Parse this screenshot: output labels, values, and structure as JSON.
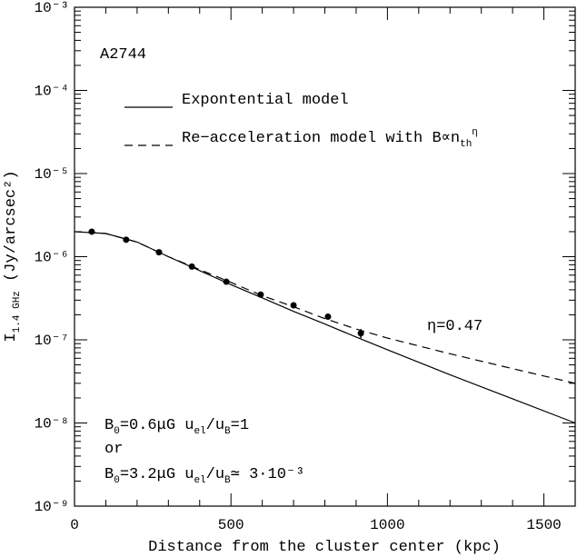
{
  "chart_data": {
    "type": "line",
    "xlabel": "Distance from the cluster center (kpc)",
    "ylabel": [
      {
        "text": "I"
      },
      {
        "text": "1.4 GHz",
        "pos": "sub"
      },
      {
        "text": " (Jy/arcsec²)"
      }
    ],
    "log_y": true,
    "xlim": [
      0,
      1600
    ],
    "xticks": [
      0,
      500,
      1000,
      1500
    ],
    "xminorticks": [
      100,
      200,
      300,
      400,
      600,
      700,
      800,
      900,
      1100,
      1200,
      1300,
      1400,
      1600
    ],
    "ylim": [
      1e-09,
      0.001
    ],
    "yticks": [
      {
        "value": 1e-09,
        "label": "10⁻⁹"
      },
      {
        "value": 1e-08,
        "label": "10⁻⁸"
      },
      {
        "value": 1e-07,
        "label": "10⁻⁷"
      },
      {
        "value": 1e-06,
        "label": "10⁻⁶"
      },
      {
        "value": 1e-05,
        "label": "10⁻⁵"
      },
      {
        "value": 0.0001,
        "label": "10⁻⁴"
      },
      {
        "value": 0.001,
        "label": "10⁻³"
      }
    ],
    "yminorticks": [
      2e-09,
      3e-09,
      4e-09,
      5e-09,
      6e-09,
      7e-09,
      8e-09,
      9e-09,
      2e-08,
      3e-08,
      4e-08,
      5e-08,
      6e-08,
      7e-08,
      8e-08,
      9e-08,
      2e-07,
      3e-07,
      4e-07,
      5e-07,
      6e-07,
      7e-07,
      8e-07,
      9e-07,
      2e-06,
      3e-06,
      4e-06,
      5e-06,
      6e-06,
      7e-06,
      8e-06,
      9e-06,
      2e-05,
      3e-05,
      4e-05,
      5e-05,
      6e-05,
      7e-05,
      8e-05,
      9e-05,
      0.0002,
      0.0003,
      0.0004,
      0.0005,
      0.0006,
      0.0007,
      0.0008,
      0.0009
    ],
    "series": [
      {
        "name": [
          {
            "text": "Expontential model"
          }
        ],
        "kind": "line",
        "dash": false,
        "color": "#000000",
        "x": [
          0,
          100,
          200,
          300,
          400,
          500,
          600,
          700,
          800,
          900,
          1000,
          1200,
          1400,
          1600
        ],
        "values": [
          2e-06,
          1.9e-06,
          1.5e-06,
          1e-06,
          6.8e-07,
          4.6e-07,
          3.2e-07,
          2.2e-07,
          1.55e-07,
          1.08e-07,
          7.6e-08,
          3.8e-08,
          1.95e-08,
          1e-08
        ]
      },
      {
        "name": [
          {
            "text": "Re−acceleration model with B∝n"
          },
          {
            "text": "th",
            "pos": "sub"
          },
          {
            "text": "η",
            "pos": "sup"
          }
        ],
        "kind": "line",
        "dash": true,
        "color": "#000000",
        "x": [
          0,
          100,
          200,
          300,
          400,
          500,
          600,
          700,
          800,
          900,
          1000,
          1200,
          1400,
          1600
        ],
        "values": [
          2e-06,
          1.9e-06,
          1.5e-06,
          1e-06,
          7e-07,
          4.9e-07,
          3.4e-07,
          2.5e-07,
          1.8e-07,
          1.35e-07,
          1.05e-07,
          6.8e-08,
          4.5e-08,
          3e-08
        ]
      },
      {
        "kind": "points",
        "color": "#000000",
        "x": [
          55,
          165,
          270,
          375,
          485,
          595,
          700,
          810,
          915
        ],
        "values": [
          2e-06,
          1.6e-06,
          1.13e-06,
          7.6e-07,
          5e-07,
          3.5e-07,
          2.6e-07,
          1.9e-07,
          1.2e-07
        ],
        "errors": [
          null,
          null,
          null,
          null,
          null,
          null,
          null,
          null,
          1.5e-08
        ]
      }
    ],
    "annotations": [
      [
        {
          "text": "A2744"
        }
      ],
      [
        {
          "text": "η=0.47"
        }
      ],
      [
        {
          "text": "B"
        },
        {
          "text": "0",
          "pos": "sub"
        },
        {
          "text": "=0.6μG  u"
        },
        {
          "text": "el",
          "pos": "sub"
        },
        {
          "text": "/u"
        },
        {
          "text": "B",
          "pos": "sub"
        },
        {
          "text": "=1"
        }
      ],
      [
        {
          "text": "or"
        }
      ],
      [
        {
          "text": "B"
        },
        {
          "text": "0",
          "pos": "sub"
        },
        {
          "text": "=3.2μG  u"
        },
        {
          "text": "el",
          "pos": "sub"
        },
        {
          "text": "/u"
        },
        {
          "text": "B",
          "pos": "sub"
        },
        {
          "text": "≃ 3·10⁻³"
        }
      ]
    ]
  }
}
